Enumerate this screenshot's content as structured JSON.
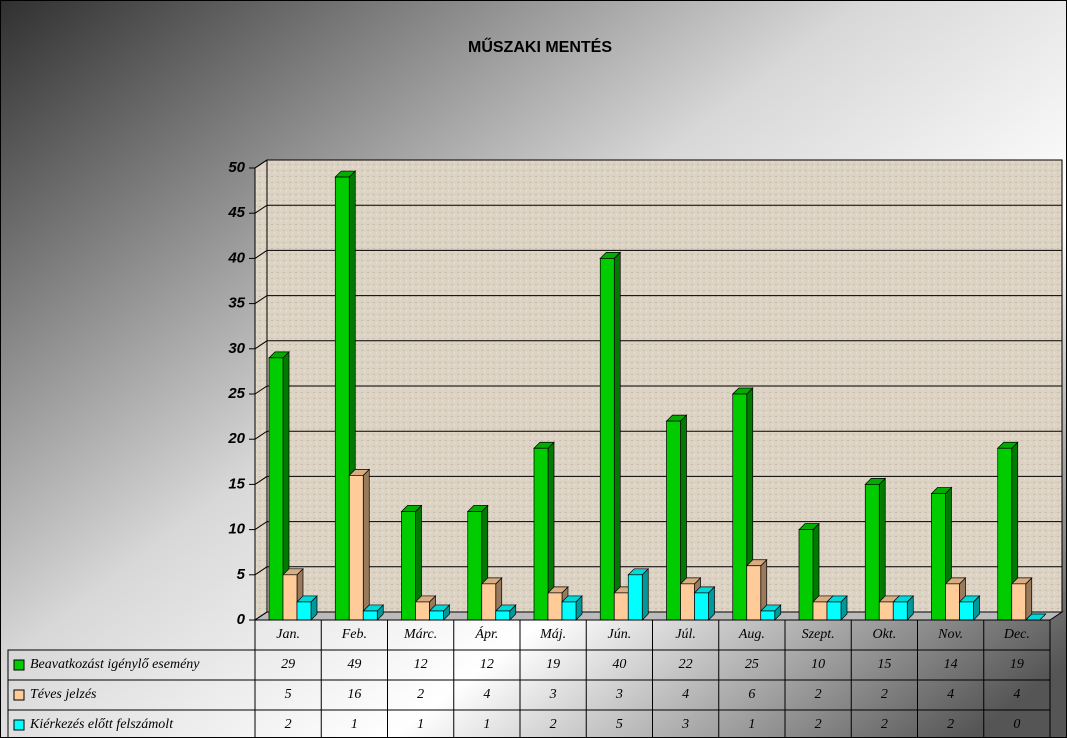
{
  "chart_data": {
    "type": "bar3d",
    "title": "MŰSZAKI MENTÉS",
    "categories": [
      "Jan.",
      "Feb.",
      "Márc.",
      "Ápr.",
      "Máj.",
      "Jún.",
      "Júl.",
      "Aug.",
      "Szept.",
      "Okt.",
      "Nov.",
      "Dec."
    ],
    "series": [
      {
        "name": "Beavatkozást igénylő esemény",
        "color": "#00cc00",
        "values": [
          29,
          49,
          12,
          12,
          19,
          40,
          22,
          25,
          10,
          15,
          14,
          19
        ]
      },
      {
        "name": "Téves jelzés",
        "color": "#ffcc99",
        "values": [
          5,
          16,
          2,
          4,
          3,
          3,
          4,
          6,
          2,
          2,
          4,
          4
        ]
      },
      {
        "name": "Kiérkezés előtt felszámolt",
        "color": "#00ffff",
        "values": [
          2,
          1,
          1,
          1,
          2,
          5,
          3,
          1,
          2,
          2,
          2,
          0
        ]
      }
    ],
    "ylim": [
      0,
      50
    ],
    "yticks": [
      0,
      5,
      10,
      15,
      20,
      25,
      30,
      35,
      40,
      45,
      50
    ],
    "grid": true
  }
}
